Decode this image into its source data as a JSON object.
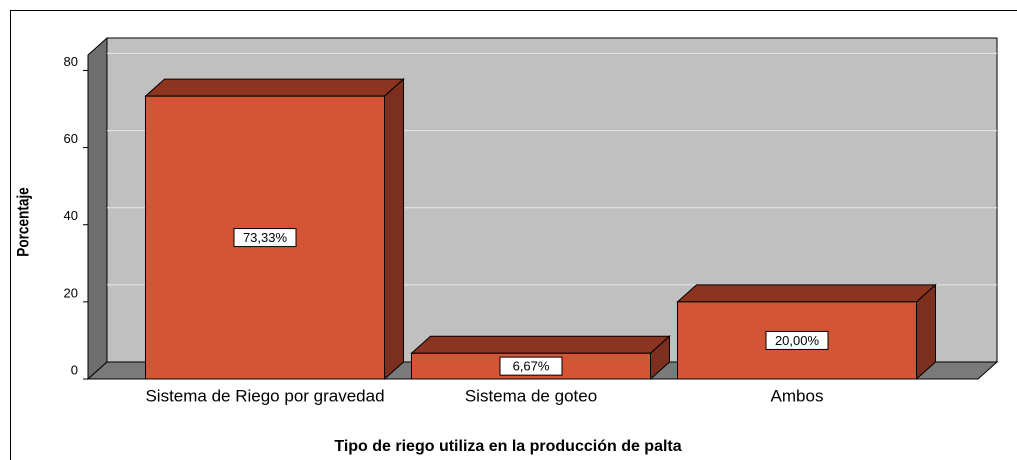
{
  "chart_data": {
    "type": "bar3d",
    "x_label": "Tipo de riego utiliza en la producción de palta",
    "y_label": "Porcentaje",
    "categories": [
      "Sistema de Riego por gravedad",
      "Sistema de goteo",
      "Ambos"
    ],
    "values": [
      73.33,
      6.67,
      20.0
    ],
    "value_labels": [
      "73,33%",
      "6,67%",
      "20,00%"
    ],
    "color": "#d35536",
    "ylim": [
      0,
      84
    ],
    "yticks": [
      0,
      20,
      40,
      60,
      80
    ],
    "grid": true
  }
}
